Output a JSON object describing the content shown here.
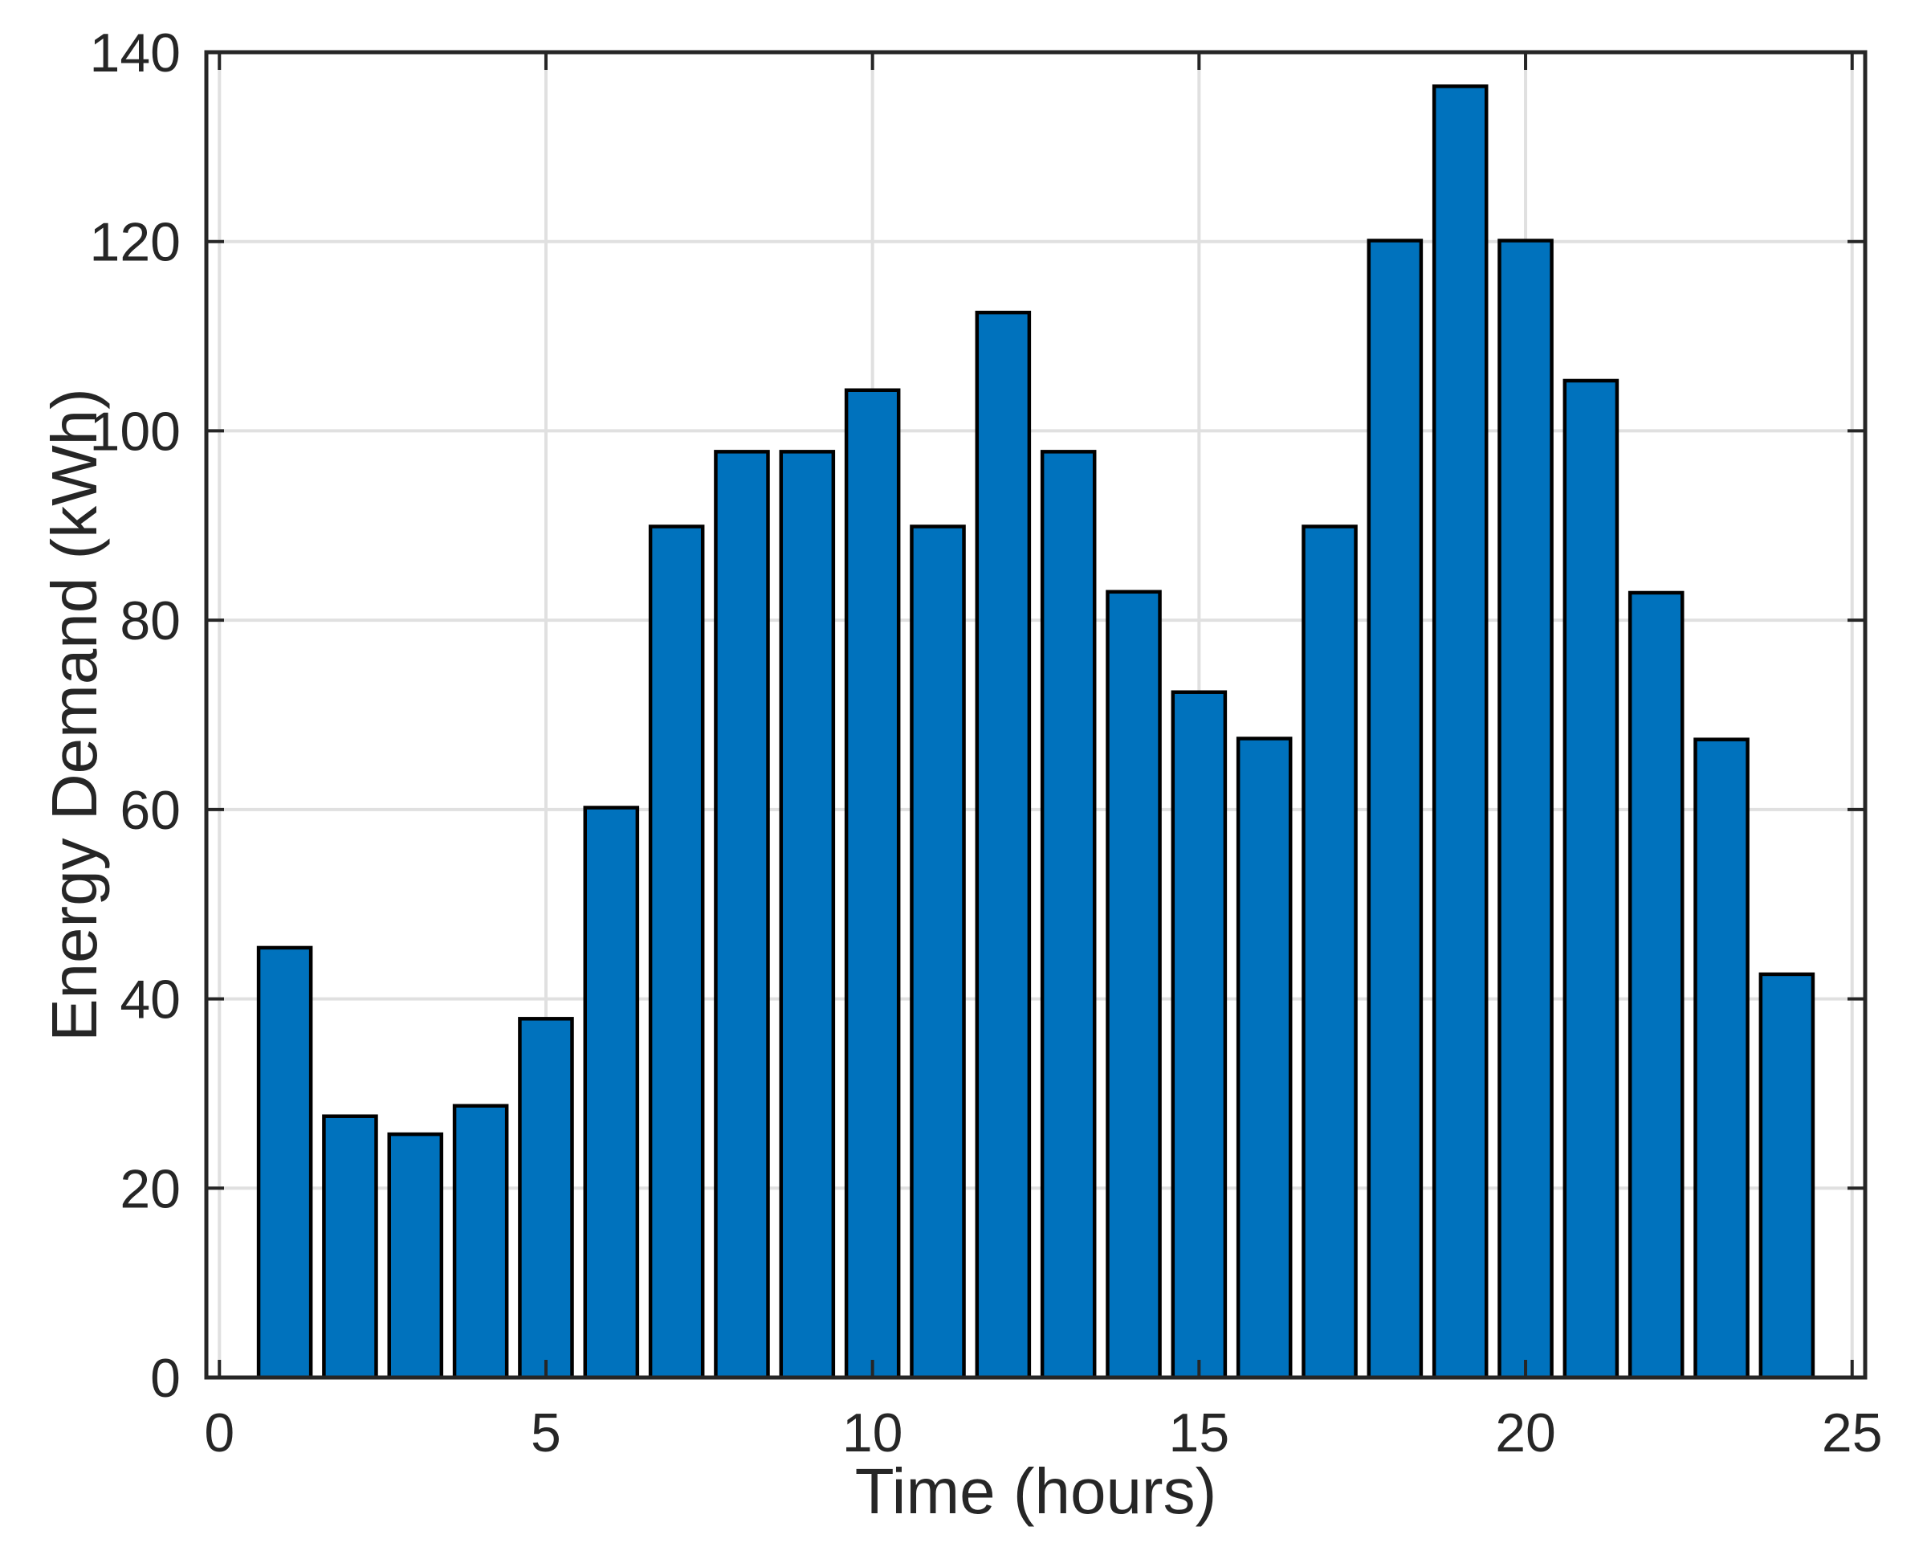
{
  "chart_data": {
    "type": "bar",
    "title": "",
    "xlabel": "Time (hours)",
    "ylabel": "Energy Demand (kWh)",
    "x": [
      1,
      2,
      3,
      4,
      5,
      6,
      7,
      8,
      9,
      10,
      11,
      12,
      13,
      14,
      15,
      16,
      17,
      18,
      19,
      20,
      21,
      22,
      23,
      24
    ],
    "values": [
      45.4,
      27.6,
      25.7,
      28.7,
      37.9,
      60.2,
      89.9,
      97.8,
      97.8,
      104.3,
      89.9,
      112.5,
      97.8,
      83.0,
      72.4,
      67.5,
      89.9,
      120.1,
      136.4,
      120.1,
      105.3,
      82.9,
      67.4,
      42.6
    ],
    "xlim": [
      -0.2,
      25.2
    ],
    "ylim": [
      0,
      140
    ],
    "xticks": [
      0,
      5,
      10,
      15,
      20,
      25
    ],
    "yticks": [
      0,
      20,
      40,
      60,
      80,
      100,
      120,
      140
    ],
    "grid": true,
    "legend": null,
    "bar_width": 0.8,
    "colors": {
      "bar_fill": "#0072BD",
      "bar_edge": "#000000",
      "grid": "#E0E0E0",
      "axis": "#262626",
      "tick_label": "#262626",
      "background": "#FFFFFF"
    }
  }
}
